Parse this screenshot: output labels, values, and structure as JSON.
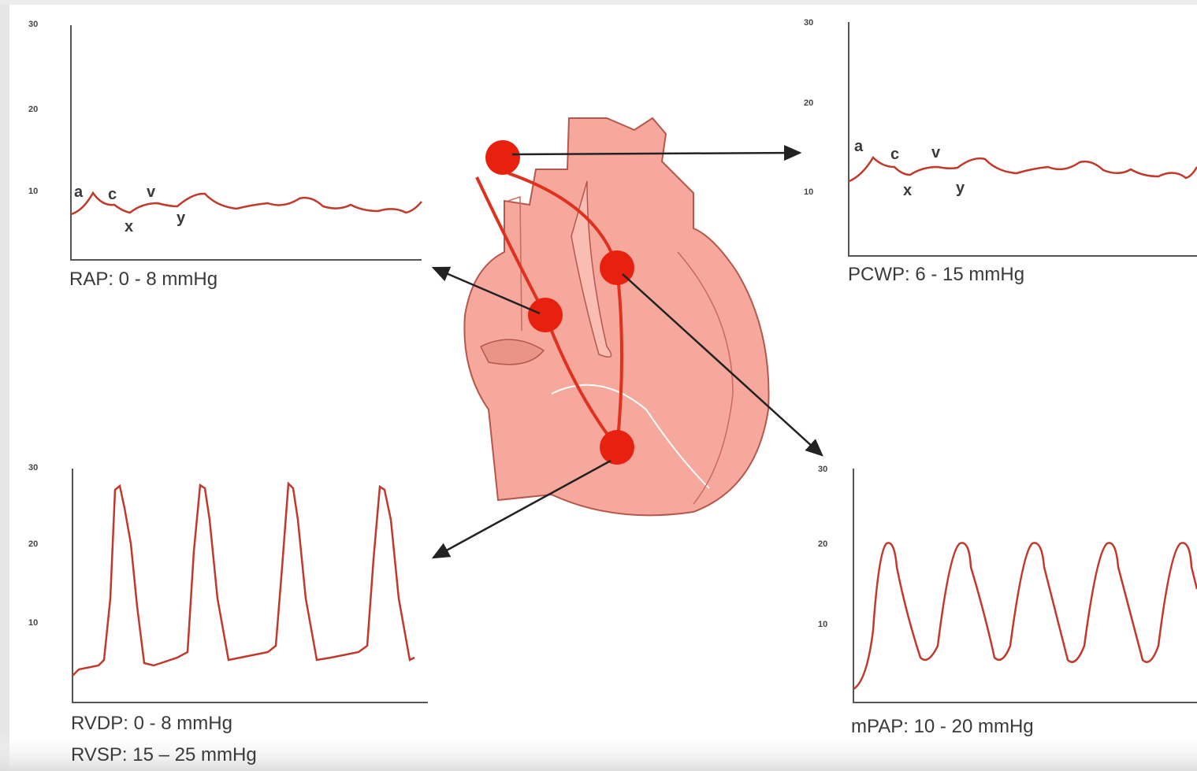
{
  "panels": [
    {
      "captions": [
        "RAP: 0 - 8 mmHg"
      ],
      "yticks": [
        30,
        20,
        10
      ],
      "wave_labels": [
        "a",
        "c",
        "v",
        "x",
        "y"
      ]
    },
    {
      "captions": [
        "PCWP: 6 - 15 mmHg"
      ],
      "yticks": [
        30,
        20,
        10
      ],
      "wave_labels": [
        "a",
        "c",
        "v",
        "x",
        "y"
      ]
    },
    {
      "captions": [
        "RVDP: 0 - 8 mmHg",
        "RVSP: 15 – 25 mmHg"
      ],
      "yticks": [
        30,
        20,
        10
      ]
    },
    {
      "captions": [
        "mPAP: 10 - 20 mmHg"
      ],
      "yticks": [
        30,
        20,
        10
      ]
    }
  ]
}
